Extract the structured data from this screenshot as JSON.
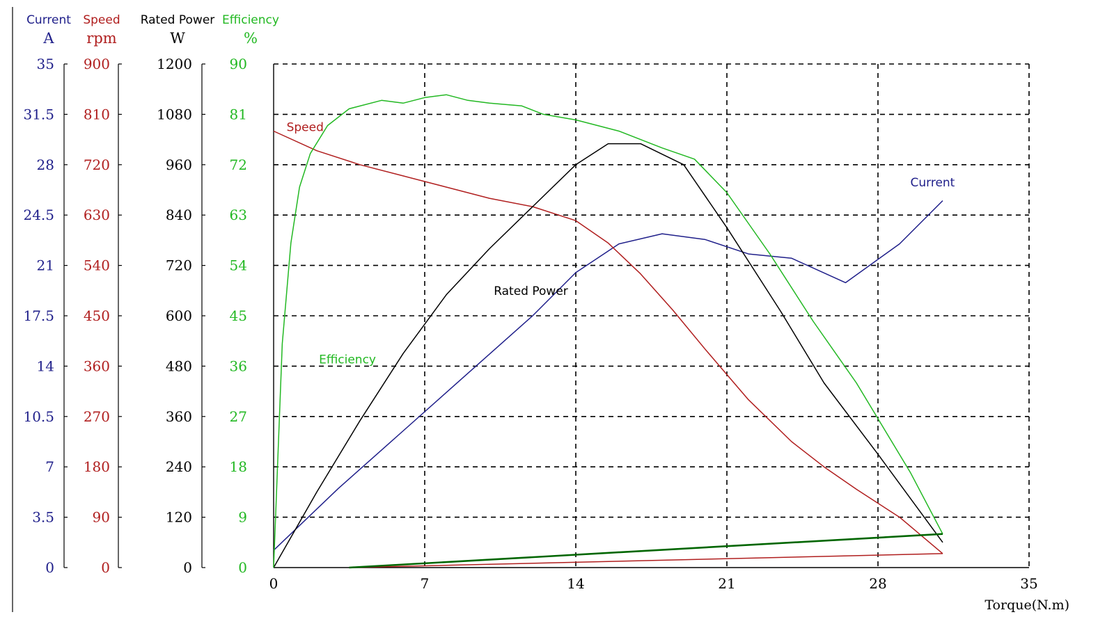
{
  "chart_data": {
    "type": "line",
    "xlabel": "Torque(N.m)",
    "x_ticks": [
      "0",
      "7",
      "14",
      "21",
      "28",
      "35"
    ],
    "xlim": [
      0,
      35
    ],
    "grid": true,
    "axes": [
      {
        "key": "current",
        "name": "Current",
        "unit": "A",
        "color": "#1f1f8a",
        "ylim": [
          0,
          35
        ],
        "ticks": [
          "0",
          "3.5",
          "7",
          "10.5",
          "14",
          "17.5",
          "21",
          "24.5",
          "28",
          "31.5",
          "35"
        ]
      },
      {
        "key": "speed",
        "name": "Speed",
        "unit": "rpm",
        "color": "#b01e1e",
        "ylim": [
          0,
          900
        ],
        "ticks": [
          "0",
          "90",
          "180",
          "270",
          "360",
          "450",
          "540",
          "630",
          "720",
          "810",
          "900"
        ]
      },
      {
        "key": "power",
        "name": "Rated Power",
        "unit": "W",
        "color": "#000000",
        "ylim": [
          0,
          1200
        ],
        "ticks": [
          "0",
          "120",
          "240",
          "360",
          "480",
          "600",
          "720",
          "840",
          "960",
          "1080",
          "1200"
        ]
      },
      {
        "key": "efficiency",
        "name": "Efficiency",
        "unit": "%",
        "color": "#22b822",
        "ylim": [
          0,
          90
        ],
        "ticks": [
          "0",
          "9",
          "18",
          "27",
          "36",
          "45",
          "54",
          "63",
          "72",
          "81",
          "90"
        ]
      }
    ],
    "series": [
      {
        "name": "Current",
        "axis": "current",
        "color": "#1f1f8a",
        "x": [
          0,
          3,
          6,
          9,
          12,
          14,
          16,
          18,
          20,
          22,
          24,
          26.5,
          29,
          31
        ],
        "y": [
          1.2,
          5.5,
          9.5,
          13.5,
          17.5,
          20.5,
          22.5,
          23.2,
          22.8,
          21.8,
          21.5,
          19.8,
          22.5,
          25.5
        ]
      },
      {
        "name": "Speed",
        "axis": "speed",
        "color": "#b01e1e",
        "x": [
          0,
          2,
          4,
          6,
          8,
          10,
          12,
          14,
          15.5,
          17,
          18.5,
          20,
          22,
          24,
          25.5,
          27,
          29,
          31
        ],
        "y": [
          780,
          745,
          720,
          700,
          680,
          660,
          645,
          620,
          580,
          525,
          460,
          390,
          300,
          225,
          180,
          140,
          90,
          25
        ]
      },
      {
        "name": "Rated Power",
        "axis": "power",
        "color": "#000000",
        "x": [
          0,
          2,
          4,
          6,
          8,
          10,
          12,
          14,
          15.5,
          17,
          19,
          21,
          23.5,
          25.5,
          28,
          31
        ],
        "y": [
          0,
          180,
          350,
          510,
          650,
          760,
          860,
          960,
          1010,
          1010,
          960,
          810,
          610,
          440,
          270,
          60
        ]
      },
      {
        "name": "Efficiency",
        "axis": "efficiency",
        "color": "#22b822",
        "x": [
          0,
          0.4,
          0.8,
          1.2,
          1.7,
          2.5,
          3.5,
          5,
          6,
          7,
          8,
          9,
          10,
          11.5,
          12.5,
          14,
          16,
          18,
          19.5,
          21,
          23,
          25,
          27,
          29.5,
          31
        ],
        "y": [
          0,
          40,
          58,
          68,
          74,
          79,
          82,
          83.5,
          83,
          84,
          84.5,
          83.5,
          83,
          82.5,
          81,
          80,
          78,
          75,
          73,
          67,
          56,
          44,
          33,
          17,
          6
        ]
      },
      {
        "name": "",
        "axis": "speed",
        "color": "#b01e1e",
        "x": [
          3.5,
          31
        ],
        "y": [
          0,
          25
        ]
      },
      {
        "name": "",
        "axis": "efficiency",
        "color": "#006600",
        "x": [
          3.5,
          31
        ],
        "y": [
          0,
          6
        ]
      }
    ],
    "annotations": [
      {
        "text": "Speed",
        "color": "#b01e1e",
        "x": 0.6,
        "axis": "speed",
        "y": 780
      },
      {
        "text": "Current",
        "color": "#1f1f8a",
        "x": 29.5,
        "axis": "current",
        "y": 26.5
      },
      {
        "text": "Rated Power",
        "color": "#000000",
        "x": 10.2,
        "axis": "power",
        "y": 650
      },
      {
        "text": "Efficiency",
        "color": "#22b822",
        "x": 2.1,
        "axis": "efficiency",
        "y": 36.5
      }
    ]
  }
}
